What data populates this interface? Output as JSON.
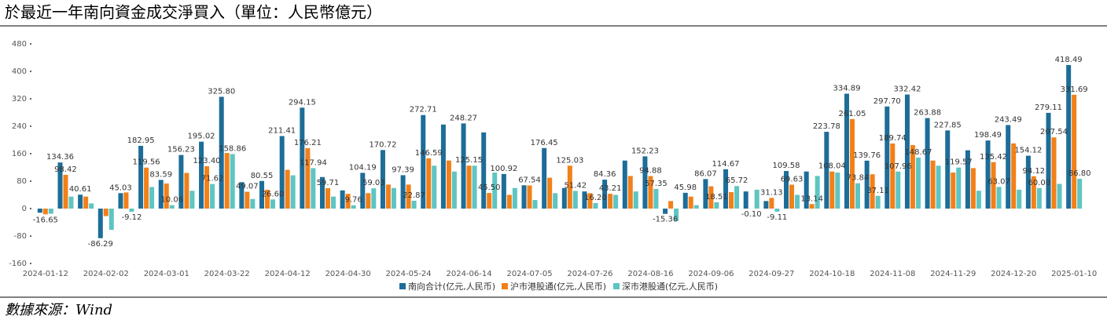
{
  "chart_data": {
    "type": "bar",
    "title": "於最近一年南向資金成交淨買入（單位：人民幣億元）",
    "source": "數據來源：Wind",
    "categories": [
      "2024-01-12",
      null,
      null,
      "2024-02-02",
      null,
      null,
      "2024-03-01",
      null,
      null,
      "2024-03-22",
      null,
      null,
      "2024-04-12",
      null,
      null,
      "2024-04-30",
      null,
      null,
      "2024-05-24",
      null,
      null,
      "2024-06-14",
      null,
      null,
      "2024-07-05",
      null,
      null,
      "2024-07-26",
      null,
      null,
      "2024-08-16",
      null,
      null,
      "2024-09-06",
      null,
      null,
      "2024-09-27",
      null,
      null,
      "2024-10-18",
      null,
      null,
      "2024-11-08",
      null,
      null,
      "2024-11-29",
      null,
      null,
      "2024-12-20",
      null,
      null,
      "2025-01-10"
    ],
    "ylim": [
      -160,
      480
    ],
    "yticks": [
      -160,
      -80,
      0,
      80,
      160,
      240,
      320,
      400,
      480
    ],
    "grid": false,
    "legend": "bottom",
    "series": [
      {
        "name": "南向合计(亿元,人民币)",
        "color": "#1d6d98",
        "values": [
          -12,
          134.36,
          40.61,
          -86.29,
          45.03,
          182.95,
          83.59,
          156.23,
          195.02,
          325.8,
          77,
          80.55,
          211.41,
          294.15,
          92,
          53,
          104.19,
          170.72,
          97.39,
          272.71,
          245,
          248.27,
          222,
          100.92,
          68,
          176.45,
          60,
          50,
          84.36,
          140,
          152.23,
          -15.36,
          45.98,
          86.07,
          114.67,
          50,
          22,
          109.58,
          108,
          223.78,
          334.89,
          139.76,
          297.7,
          332.42,
          263.88,
          227.85,
          170,
          198.49,
          243.49,
          154.12,
          279.11,
          418.49
        ],
        "value_labels": [
          null,
          "134.36",
          "40.61",
          "-86.29",
          "45.03",
          "182.95",
          "83.59",
          "156.23",
          "195.02",
          "325.80",
          null,
          "80.55",
          "211.41",
          "294.15",
          null,
          null,
          "104.19",
          "170.72",
          "97.39",
          "272.71",
          null,
          "248.27",
          null,
          "100.92",
          null,
          "176.45",
          null,
          null,
          "84.36",
          null,
          "152.23",
          "-15.36",
          "45.98",
          "86.07",
          "114.67",
          null,
          null,
          "109.58",
          null,
          "223.78",
          "334.89",
          "139.76",
          "297.70",
          "332.42",
          "263.88",
          "227.85",
          null,
          "198.49",
          "243.49",
          "154.12",
          "279.11",
          "418.49"
        ]
      },
      {
        "name": "沪市港股通(亿元,人民币)",
        "color": "#f28019",
        "values": [
          -16.65,
          98.42,
          35,
          -22,
          47,
          119.56,
          73,
          104,
          123.4,
          162,
          49.07,
          55,
          113,
          176.21,
          59.71,
          43,
          45,
          70,
          70,
          146.59,
          140,
          125.15,
          45.5,
          40,
          67.54,
          90,
          125.03,
          45,
          43.21,
          95,
          94.88,
          22,
          35,
          65,
          48,
          -0.1,
          31.13,
          69.63,
          13.14,
          108.04,
          261.05,
          100,
          189.74,
          185,
          140,
          105,
          118,
          135.42,
          190,
          94.12,
          207.54,
          331.69
        ],
        "value_labels": [
          "-16.65",
          "98.42",
          null,
          null,
          null,
          "119.56",
          null,
          null,
          "123.40",
          null,
          "49.07",
          null,
          null,
          "176.21",
          "59.71",
          null,
          null,
          null,
          null,
          "146.59",
          null,
          "125.15",
          "45.50",
          null,
          "67.54",
          null,
          "125.03",
          null,
          "43.21",
          null,
          "94.88",
          null,
          null,
          null,
          null,
          "-0.10",
          "31.13",
          "69.63",
          "13.14",
          "108.04",
          "261.05",
          null,
          "189.74",
          null,
          null,
          null,
          null,
          "135.42",
          null,
          "94.12",
          "207.54",
          "331.69"
        ]
      },
      {
        "name": "深市港股通(亿元,人民币)",
        "color": "#5ec5c3",
        "values": [
          -15,
          35,
          15,
          -62,
          -9.12,
          63,
          10.06,
          52,
          71.62,
          158.86,
          28,
          26.6,
          97,
          117.94,
          35,
          9.76,
          59.03,
          60,
          22.87,
          125,
          108,
          125,
          105,
          60,
          25,
          45,
          51.42,
          16.2,
          40,
          50,
          57.35,
          -36,
          10,
          18.51,
          65.72,
          55,
          -9.11,
          40,
          95,
          105,
          73.84,
          37.11,
          107.96,
          148.67,
          125,
          119.57,
          52,
          63.07,
          55,
          60,
          72,
          86.8
        ],
        "value_labels": [
          null,
          null,
          null,
          null,
          "-9.12",
          null,
          "10.06",
          null,
          "71.62",
          "158.86",
          null,
          "26.60",
          null,
          "117.94",
          null,
          "9.76",
          "59.03",
          null,
          "22.87",
          null,
          null,
          null,
          null,
          null,
          null,
          null,
          "51.42",
          "16.20",
          null,
          null,
          "57.35",
          null,
          null,
          "18.51",
          "65.72",
          null,
          "-9.11",
          null,
          null,
          null,
          "73.84",
          "37.11",
          "107.96",
          "148.67",
          null,
          "119.57",
          null,
          "63.07",
          null,
          "60.00",
          null,
          "86.80"
        ]
      }
    ]
  }
}
